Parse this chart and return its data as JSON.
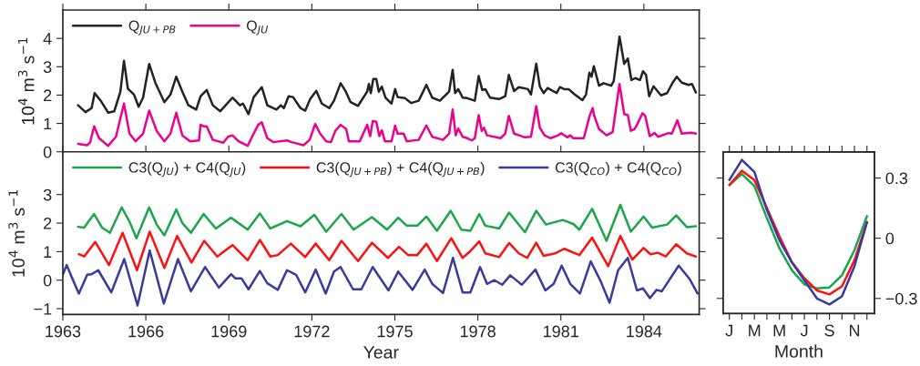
{
  "chart_data": [
    {
      "type": "line",
      "ylabel": "10$^{4}$ m$^{3}$ s$^{−1}$",
      "xlim": [
        1963,
        1986
      ],
      "xticks": [
        1963,
        1966,
        1969,
        1972,
        1975,
        1978,
        1981,
        1984
      ],
      "ylim": [
        0,
        5
      ],
      "yticks": [
        0,
        1,
        2,
        3,
        4
      ],
      "tick_labels": "y",
      "legend": "top left",
      "series": [
        {
          "name": "Q$_{JU+PB}$",
          "color": "#222222",
          "x": [
            1963.55,
            1963.82,
            1964.04,
            1964.15,
            1964.37,
            1964.64,
            1964.86,
            1965.08,
            1965.21,
            1965.35,
            1965.57,
            1965.74,
            1965.9,
            1966.12,
            1966.34,
            1966.67,
            1966.89,
            1967.1,
            1967.32,
            1967.54,
            1967.82,
            1967.98,
            1968.2,
            1968.42,
            1968.69,
            1969.13,
            1969.4,
            1969.51,
            1969.71,
            1969.9,
            1970.19,
            1970.39,
            1970.72,
            1970.88,
            1970.99,
            1971.16,
            1971.32,
            1971.59,
            1971.76,
            1971.94,
            1972.16,
            1972.36,
            1972.63,
            1972.8,
            1973.04,
            1973.23,
            1973.4,
            1973.67,
            1974.0,
            1974.06,
            1974.13,
            1974.22,
            1974.33,
            1974.42,
            1974.53,
            1974.66,
            1974.88,
            1975.01,
            1975.1,
            1975.37,
            1975.59,
            1975.86,
            1976.14,
            1976.35,
            1976.63,
            1976.96,
            1977.09,
            1977.18,
            1977.29,
            1977.45,
            1977.62,
            1977.89,
            1978.03,
            1978.16,
            1978.27,
            1978.44,
            1978.77,
            1978.99,
            1979.12,
            1979.31,
            1979.48,
            1979.81,
            1979.92,
            1980.11,
            1980.24,
            1980.38,
            1980.52,
            1980.85,
            1980.96,
            1981.12,
            1981.28,
            1981.5,
            1981.78,
            1981.91,
            1982.03,
            1982.11,
            1982.19,
            1982.38,
            1982.54,
            1982.82,
            1982.91,
            1983.12,
            1983.29,
            1983.42,
            1983.55,
            1983.69,
            1983.86,
            1983.97,
            1984.08,
            1984.19,
            1984.35,
            1984.62,
            1984.84,
            1985.04,
            1985.19,
            1985.37,
            1985.61,
            1985.74,
            1985.88
          ],
          "values": [
            1.64,
            1.4,
            1.54,
            2.07,
            1.8,
            1.38,
            1.43,
            2.12,
            3.21,
            2.23,
            2.02,
            1.59,
            1.91,
            3.1,
            2.44,
            1.75,
            2.02,
            2.65,
            2.12,
            1.64,
            1.49,
            1.96,
            2.18,
            1.64,
            1.43,
            1.91,
            1.64,
            1.7,
            1.33,
            1.93,
            2.28,
            1.64,
            1.49,
            1.64,
            1.54,
            1.96,
            1.93,
            1.54,
            1.45,
            1.86,
            2.15,
            1.7,
            1.54,
            1.8,
            2.42,
            2.12,
            1.75,
            1.62,
            2.12,
            2.39,
            2.07,
            2.57,
            2.57,
            2.12,
            2.3,
            1.91,
            1.7,
            2.21,
            1.93,
            1.89,
            1.72,
            1.8,
            2.36,
            1.91,
            1.8,
            2.12,
            2.89,
            2.07,
            2.21,
            1.91,
            1.89,
            1.8,
            2.67,
            2.18,
            2.21,
            1.91,
            1.86,
            1.96,
            2.71,
            2.14,
            2.28,
            2.21,
            2.02,
            3.11,
            2.3,
            2.07,
            2.25,
            2.07,
            2.28,
            2.21,
            2.21,
            2.02,
            1.82,
            2.02,
            2.79,
            2.65,
            3.02,
            2.33,
            2.42,
            2.33,
            2.49,
            4.06,
            3.1,
            3.29,
            2.53,
            2.6,
            2.53,
            2.84,
            2.71,
            1.96,
            2.31,
            1.99,
            2.07,
            2.44,
            2.65,
            2.44,
            2.36,
            2.39,
            2.09
          ]
        },
        {
          "name": "Q$_{JU}$",
          "color": "#ec008c",
          "x": [
            1963.55,
            1963.88,
            1963.99,
            1964.13,
            1964.31,
            1964.64,
            1964.92,
            1965.21,
            1965.41,
            1965.63,
            1965.9,
            1966.12,
            1966.39,
            1966.67,
            1966.89,
            1967.1,
            1967.32,
            1967.6,
            1967.92,
            1967.98,
            1968.09,
            1968.2,
            1968.42,
            1968.8,
            1968.97,
            1969.13,
            1969.35,
            1969.68,
            1969.84,
            1970.06,
            1970.19,
            1970.39,
            1970.61,
            1971.1,
            1971.27,
            1971.7,
            1971.92,
            1972.12,
            1972.3,
            1972.52,
            1972.69,
            1972.85,
            1973.04,
            1973.24,
            1973.34,
            1973.73,
            1974.0,
            1974.11,
            1974.2,
            1974.33,
            1974.44,
            1974.53,
            1974.64,
            1974.88,
            1975.01,
            1975.1,
            1975.32,
            1975.43,
            1975.86,
            1976.14,
            1976.35,
            1976.74,
            1976.96,
            1977.09,
            1977.2,
            1977.29,
            1977.45,
            1977.62,
            1977.78,
            1977.89,
            1978.03,
            1978.14,
            1978.22,
            1978.33,
            1978.82,
            1978.99,
            1979.12,
            1979.31,
            1979.7,
            1979.92,
            1980.11,
            1980.24,
            1980.41,
            1980.63,
            1980.9,
            1981.01,
            1981.23,
            1981.34,
            1981.45,
            1981.83,
            1982.04,
            1982.15,
            1982.2,
            1982.38,
            1982.65,
            1982.87,
            1983.12,
            1983.29,
            1983.42,
            1983.53,
            1983.66,
            1983.75,
            1983.95,
            1984.05,
            1984.21,
            1984.39,
            1984.51,
            1984.9,
            1985.01,
            1985.21,
            1985.37,
            1985.72,
            1985.88
          ],
          "values": [
            0.28,
            0.23,
            0.34,
            0.9,
            0.48,
            0.21,
            0.53,
            1.7,
            0.64,
            0.37,
            0.64,
            1.45,
            0.74,
            0.37,
            0.64,
            1.38,
            0.58,
            0.37,
            0.4,
            0.95,
            0.9,
            0.9,
            0.42,
            0.32,
            0.53,
            0.58,
            0.37,
            0.21,
            0.53,
            0.95,
            1.04,
            0.48,
            0.34,
            0.4,
            0.34,
            0.23,
            0.42,
            0.98,
            0.64,
            0.37,
            0.34,
            0.74,
            0.95,
            0.8,
            0.37,
            0.37,
            0.95,
            0.55,
            1.08,
            1.06,
            0.55,
            0.76,
            0.37,
            0.37,
            0.92,
            0.64,
            0.64,
            0.37,
            0.42,
            0.93,
            0.53,
            0.42,
            0.64,
            1.49,
            0.58,
            0.82,
            0.53,
            0.48,
            0.4,
            0.48,
            1.29,
            0.74,
            0.85,
            0.58,
            0.48,
            0.64,
            1.27,
            0.64,
            0.51,
            0.53,
            1.61,
            0.85,
            0.58,
            0.48,
            0.58,
            0.66,
            0.51,
            0.58,
            0.48,
            0.48,
            1.27,
            1.54,
            1.29,
            0.8,
            0.58,
            0.69,
            2.39,
            1.33,
            1.29,
            0.74,
            0.8,
            0.95,
            1.36,
            1.27,
            0.55,
            0.66,
            0.53,
            0.66,
            0.64,
            1.11,
            0.64,
            0.67,
            0.64
          ]
        }
      ]
    },
    {
      "type": "line",
      "ylabel": "10$^{4}$ m$^{3}$ s$^{−1}$",
      "xlabel": "Year",
      "xlim": [
        1963,
        1986
      ],
      "xticks": [
        1963,
        1966,
        1969,
        1972,
        1975,
        1978,
        1981,
        1984
      ],
      "ylim": [
        -1.2,
        4.5
      ],
      "yticks": [
        -1,
        0,
        1,
        2,
        3
      ],
      "legend": "top left",
      "series": [
        {
          "name": "C3(Q$_{JU}$) + C4(Q$_{JU}$)",
          "color": "#1aa64a",
          "x": [
            1963.55,
            1963.77,
            1964.13,
            1964.42,
            1964.7,
            1965.13,
            1965.41,
            1965.66,
            1966.12,
            1966.39,
            1966.67,
            1967.1,
            1967.32,
            1967.63,
            1968.09,
            1968.53,
            1969.08,
            1969.68,
            1970.12,
            1970.5,
            1971.1,
            1971.59,
            1972.09,
            1972.52,
            1973.07,
            1973.51,
            1974.17,
            1974.72,
            1975.12,
            1975.43,
            1975.81,
            1976.14,
            1976.52,
            1977.02,
            1977.4,
            1977.73,
            1978.05,
            1978.27,
            1978.77,
            1979.13,
            1979.7,
            1980.11,
            1980.46,
            1981.07,
            1981.45,
            1981.67,
            1982.13,
            1982.65,
            1983.15,
            1983.53,
            1983.99,
            1984.3,
            1984.84,
            1985.17,
            1985.55,
            1985.88
          ],
          "values": [
            1.87,
            1.84,
            2.32,
            1.84,
            1.66,
            2.55,
            2.05,
            1.47,
            2.55,
            1.95,
            1.57,
            2.48,
            2.0,
            1.66,
            2.32,
            1.81,
            2.19,
            1.77,
            2.34,
            1.81,
            2.07,
            1.89,
            2.29,
            1.7,
            2.32,
            1.77,
            2.21,
            1.77,
            2.19,
            1.91,
            1.91,
            2.23,
            1.73,
            2.43,
            1.77,
            1.73,
            2.32,
            1.91,
            1.81,
            2.37,
            1.68,
            2.43,
            1.95,
            2.11,
            1.97,
            1.77,
            2.5,
            1.38,
            2.64,
            1.7,
            2.23,
            1.84,
            1.95,
            2.27,
            1.86,
            1.89
          ]
        },
        {
          "name": "C3(Q$_{JU+PB}$) + C4(Q$_{JU+PB}$)",
          "color": "#ff1010",
          "x": [
            1963.58,
            1963.77,
            1964.17,
            1964.67,
            1965.16,
            1965.68,
            1966.14,
            1966.67,
            1967.13,
            1967.65,
            1968.11,
            1968.58,
            1969.13,
            1969.68,
            1970.12,
            1970.5,
            1970.77,
            1971.24,
            1971.76,
            1972.14,
            1972.63,
            1973.07,
            1973.67,
            1974.17,
            1974.75,
            1975.15,
            1975.48,
            1975.81,
            1976.14,
            1976.52,
            1977.04,
            1977.45,
            1977.73,
            1978.05,
            1978.27,
            1978.77,
            1979.13,
            1979.48,
            1979.78,
            1980.11,
            1980.38,
            1980.79,
            1981.12,
            1981.67,
            1982.13,
            1982.71,
            1983.15,
            1983.58,
            1983.99,
            1984.24,
            1984.51,
            1984.79,
            1985.17,
            1985.55,
            1985.88
          ],
          "values": [
            0.91,
            0.83,
            1.34,
            0.53,
            1.66,
            0.35,
            1.7,
            0.43,
            1.55,
            0.62,
            1.38,
            0.83,
            1.23,
            0.7,
            1.41,
            0.83,
            0.88,
            1.28,
            0.81,
            1.28,
            0.7,
            1.38,
            0.67,
            1.31,
            0.78,
            1.17,
            0.88,
            0.88,
            1.28,
            0.67,
            1.47,
            0.78,
            1.02,
            1.36,
            0.94,
            0.81,
            1.3,
            0.94,
            0.78,
            1.31,
            0.85,
            0.94,
            1.1,
            0.88,
            1.49,
            0.49,
            1.55,
            0.72,
            1.13,
            0.91,
            0.96,
            0.83,
            1.26,
            0.94,
            0.83
          ]
        },
        {
          "name": "C3(Q$_{CO}$) + C4(Q$_{CO}$)",
          "color": "#3a3a9e",
          "x": [
            1963.0,
            1963.14,
            1963.33,
            1963.58,
            1963.88,
            1964.04,
            1964.28,
            1964.75,
            1965.22,
            1965.7,
            1966.14,
            1966.65,
            1967.16,
            1967.63,
            1968.14,
            1968.64,
            1969.08,
            1969.24,
            1969.46,
            1969.71,
            1970.12,
            1970.39,
            1970.77,
            1971.1,
            1971.43,
            1971.76,
            1972.14,
            1972.5,
            1972.8,
            1973.04,
            1973.49,
            1973.79,
            1974.2,
            1974.77,
            1975.12,
            1975.64,
            1976.08,
            1976.35,
            1976.51,
            1976.74,
            1977.1,
            1977.45,
            1977.73,
            1978.08,
            1978.33,
            1978.6,
            1978.88,
            1979.17,
            1979.59,
            1980.08,
            1980.44,
            1980.74,
            1981.03,
            1981.34,
            1981.69,
            1982.08,
            1982.43,
            1982.76,
            1983.07,
            1983.42,
            1983.75,
            1983.97,
            1984.22,
            1984.46,
            1984.65,
            1985.26,
            1985.66,
            1985.94
          ],
          "values": [
            0.19,
            0.53,
            0.09,
            -0.47,
            0.19,
            0.21,
            0.35,
            -0.43,
            0.74,
            -0.89,
            1.04,
            -0.82,
            0.74,
            -0.39,
            0.46,
            -0.26,
            0.21,
            0.06,
            0.06,
            -0.32,
            0.32,
            -0.11,
            -0.34,
            0.35,
            0.19,
            -0.43,
            0.37,
            -0.47,
            0.3,
            0.46,
            -0.32,
            -0.32,
            0.46,
            -0.36,
            0.3,
            -0.34,
            0.37,
            -0.13,
            -0.26,
            -0.45,
            0.78,
            -0.43,
            -0.43,
            0.46,
            -0.13,
            0.0,
            -0.16,
            0.17,
            -0.16,
            0.37,
            -0.36,
            -0.13,
            0.51,
            -0.13,
            -0.47,
            0.66,
            -0.02,
            -0.79,
            0.35,
            0.78,
            -0.36,
            -0.29,
            -0.63,
            -0.34,
            -0.39,
            0.51,
            0.03,
            -0.47
          ]
        }
      ]
    },
    {
      "type": "line",
      "xlabel": "Month",
      "categories": [
        "J",
        null,
        "M",
        null,
        "M",
        null,
        "J",
        null,
        "S",
        null,
        "N",
        null
      ],
      "y2lim": [
        -0.375,
        0.43
      ],
      "y2ticks": [
        -0.3,
        0,
        0.3
      ],
      "series": [
        {
          "color": "#1aa64a",
          "axis": "y2",
          "values": [
            0.265,
            0.32,
            0.26,
            0.1,
            -0.05,
            -0.16,
            -0.23,
            -0.25,
            -0.245,
            -0.185,
            -0.06,
            0.11
          ]
        },
        {
          "color": "#ff1010",
          "axis": "y2",
          "values": [
            0.265,
            0.336,
            0.29,
            0.15,
            0.01,
            -0.12,
            -0.2,
            -0.26,
            -0.28,
            -0.24,
            -0.11,
            0.08
          ]
        },
        {
          "color": "#3a3a9e",
          "axis": "y2",
          "values": [
            0.29,
            0.39,
            0.33,
            0.14,
            -0.01,
            -0.12,
            -0.21,
            -0.3,
            -0.33,
            -0.29,
            -0.14,
            0.08
          ]
        }
      ]
    }
  ]
}
